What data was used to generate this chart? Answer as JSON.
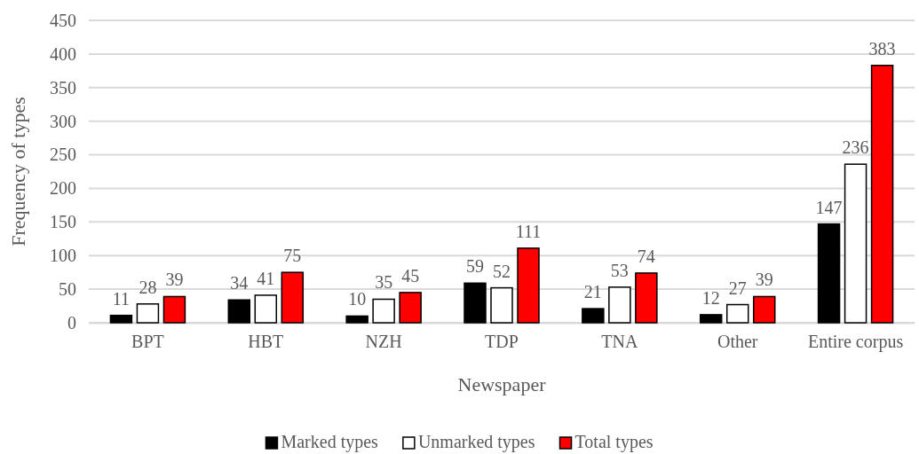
{
  "chart_data": {
    "type": "bar",
    "xlabel": "Newspaper",
    "ylabel": "Frequency of types",
    "categories": [
      "BPT",
      "HBT",
      "NZH",
      "TDP",
      "TNA",
      "Other",
      "Entire corpus"
    ],
    "series": [
      {
        "name": "Marked types",
        "color": "#000000",
        "values": [
          11,
          34,
          10,
          59,
          21,
          12,
          147
        ]
      },
      {
        "name": "Unmarked types",
        "color": "#ffffff",
        "values": [
          28,
          41,
          35,
          52,
          53,
          27,
          236
        ]
      },
      {
        "name": "Total types",
        "color": "#ff0000",
        "values": [
          39,
          75,
          45,
          111,
          74,
          39,
          383
        ]
      }
    ],
    "ylim": [
      0,
      450
    ],
    "yticks": [
      0,
      50,
      100,
      150,
      200,
      250,
      300,
      350,
      400,
      450
    ],
    "grid": "y",
    "legend": "bottom",
    "data_labels": true
  }
}
